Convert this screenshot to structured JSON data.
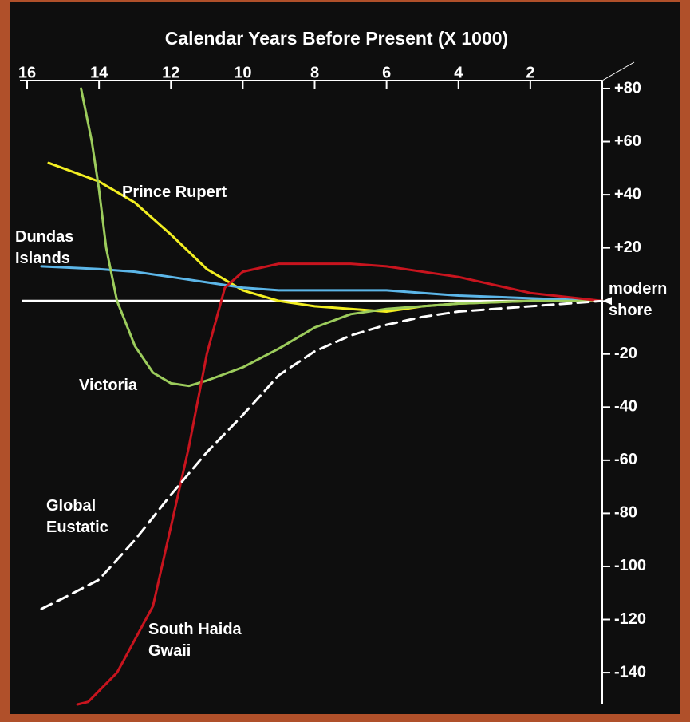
{
  "chart_data": {
    "type": "line",
    "title": "Calendar Years Before Present (X 1000)",
    "xlim": [
      16.2,
      0
    ],
    "xticks": [
      16,
      14,
      12,
      10,
      8,
      6,
      4,
      2
    ],
    "ylim": [
      -152,
      83
    ],
    "yticks": [
      {
        "value": 80,
        "label": "+80"
      },
      {
        "value": 60,
        "label": "+60"
      },
      {
        "value": 40,
        "label": "+40"
      },
      {
        "value": 20,
        "label": "+20"
      },
      -20,
      -40,
      -60,
      -80,
      -100,
      -120,
      -140
    ],
    "reference_line": 0,
    "reference_label": "modern shore",
    "series": [
      {
        "name": "Prince Rupert",
        "color": "#f2ee22",
        "dashed": false,
        "x": [
          15.4,
          14,
          13,
          12,
          11,
          10,
          9,
          8,
          7,
          6,
          5,
          4,
          2,
          0
        ],
        "values": [
          52,
          45,
          37,
          25,
          12,
          4,
          0,
          -2,
          -3,
          -4,
          -2,
          -1,
          0,
          0
        ]
      },
      {
        "name": "Dundas Islands",
        "color": "#5cb6e8",
        "dashed": false,
        "x": [
          15.6,
          14,
          13,
          12,
          11,
          10,
          9,
          8,
          6,
          5,
          4,
          2,
          0
        ],
        "values": [
          13,
          12,
          11,
          9,
          7,
          5,
          4,
          4,
          4,
          3,
          2,
          1,
          0
        ]
      },
      {
        "name": "Victoria",
        "color": "#9ccc5c",
        "dashed": false,
        "x": [
          14.5,
          14.2,
          14,
          13.8,
          13.5,
          13,
          12.5,
          12,
          11.5,
          11,
          10,
          9,
          8,
          7,
          6,
          4,
          2,
          0
        ],
        "values": [
          80,
          60,
          42,
          20,
          0,
          -17,
          -27,
          -31,
          -32,
          -30,
          -25,
          -18,
          -10,
          -5,
          -3,
          -1,
          0,
          0
        ]
      },
      {
        "name": "South Haida Gwaii",
        "color": "#c8141e",
        "dashed": false,
        "x": [
          14.6,
          14.3,
          13.5,
          12.5,
          12,
          11.5,
          11,
          10.5,
          10,
          9,
          8,
          7,
          6,
          4,
          2,
          0
        ],
        "values": [
          -152,
          -151,
          -140,
          -115,
          -85,
          -55,
          -20,
          5,
          11,
          14,
          14,
          14,
          13,
          9,
          3,
          0
        ]
      },
      {
        "name": "Global Eustatic",
        "color": "#ffffff",
        "dashed": true,
        "x": [
          15.6,
          15,
          14,
          13,
          12,
          11,
          10,
          9,
          8,
          7,
          6,
          5,
          4,
          2,
          0
        ],
        "values": [
          -116,
          -112,
          -105,
          -90,
          -73,
          -57,
          -43,
          -28,
          -19,
          -13,
          -9,
          -6,
          -4,
          -2,
          0
        ]
      }
    ]
  }
}
